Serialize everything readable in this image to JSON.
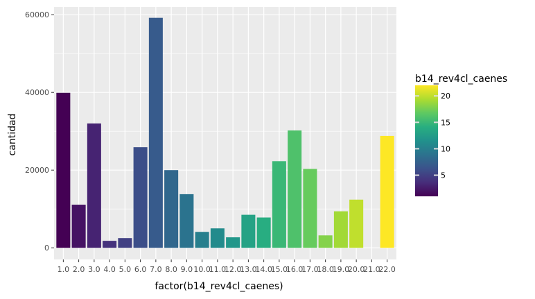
{
  "chart_data": {
    "type": "bar",
    "categories": [
      "1.0",
      "2.0",
      "3.0",
      "4.0",
      "5.0",
      "6.0",
      "7.0",
      "8.0",
      "9.0",
      "10.0",
      "11.0",
      "12.0",
      "13.0",
      "14.0",
      "15.0",
      "16.0",
      "17.0",
      "18.0",
      "19.0",
      "20.0",
      "21.0",
      "22.0"
    ],
    "values": [
      39900,
      11100,
      32000,
      1800,
      2500,
      25900,
      59200,
      20000,
      13800,
      4100,
      5000,
      2700,
      8500,
      7800,
      22300,
      30200,
      20300,
      3200,
      9400,
      12400,
      0,
      28800
    ],
    "xlabel": "factor(b14_rev4cl_caenes)",
    "ylabel": "cantidad",
    "ylim": [
      -3000,
      62000
    ],
    "y_ticks": [
      0,
      20000,
      40000,
      60000
    ],
    "y_tick_labels": [
      "0",
      "20000",
      "40000",
      "60000"
    ],
    "grid": true,
    "panel_background": "#ebebeb",
    "legend": {
      "title": "b14_rev4cl_caenes",
      "position": "right",
      "ticks": [
        5,
        10,
        15,
        20
      ],
      "tick_labels": [
        "5",
        "10",
        "15",
        "20"
      ],
      "range": [
        1,
        22
      ],
      "colormap": "viridis"
    }
  }
}
